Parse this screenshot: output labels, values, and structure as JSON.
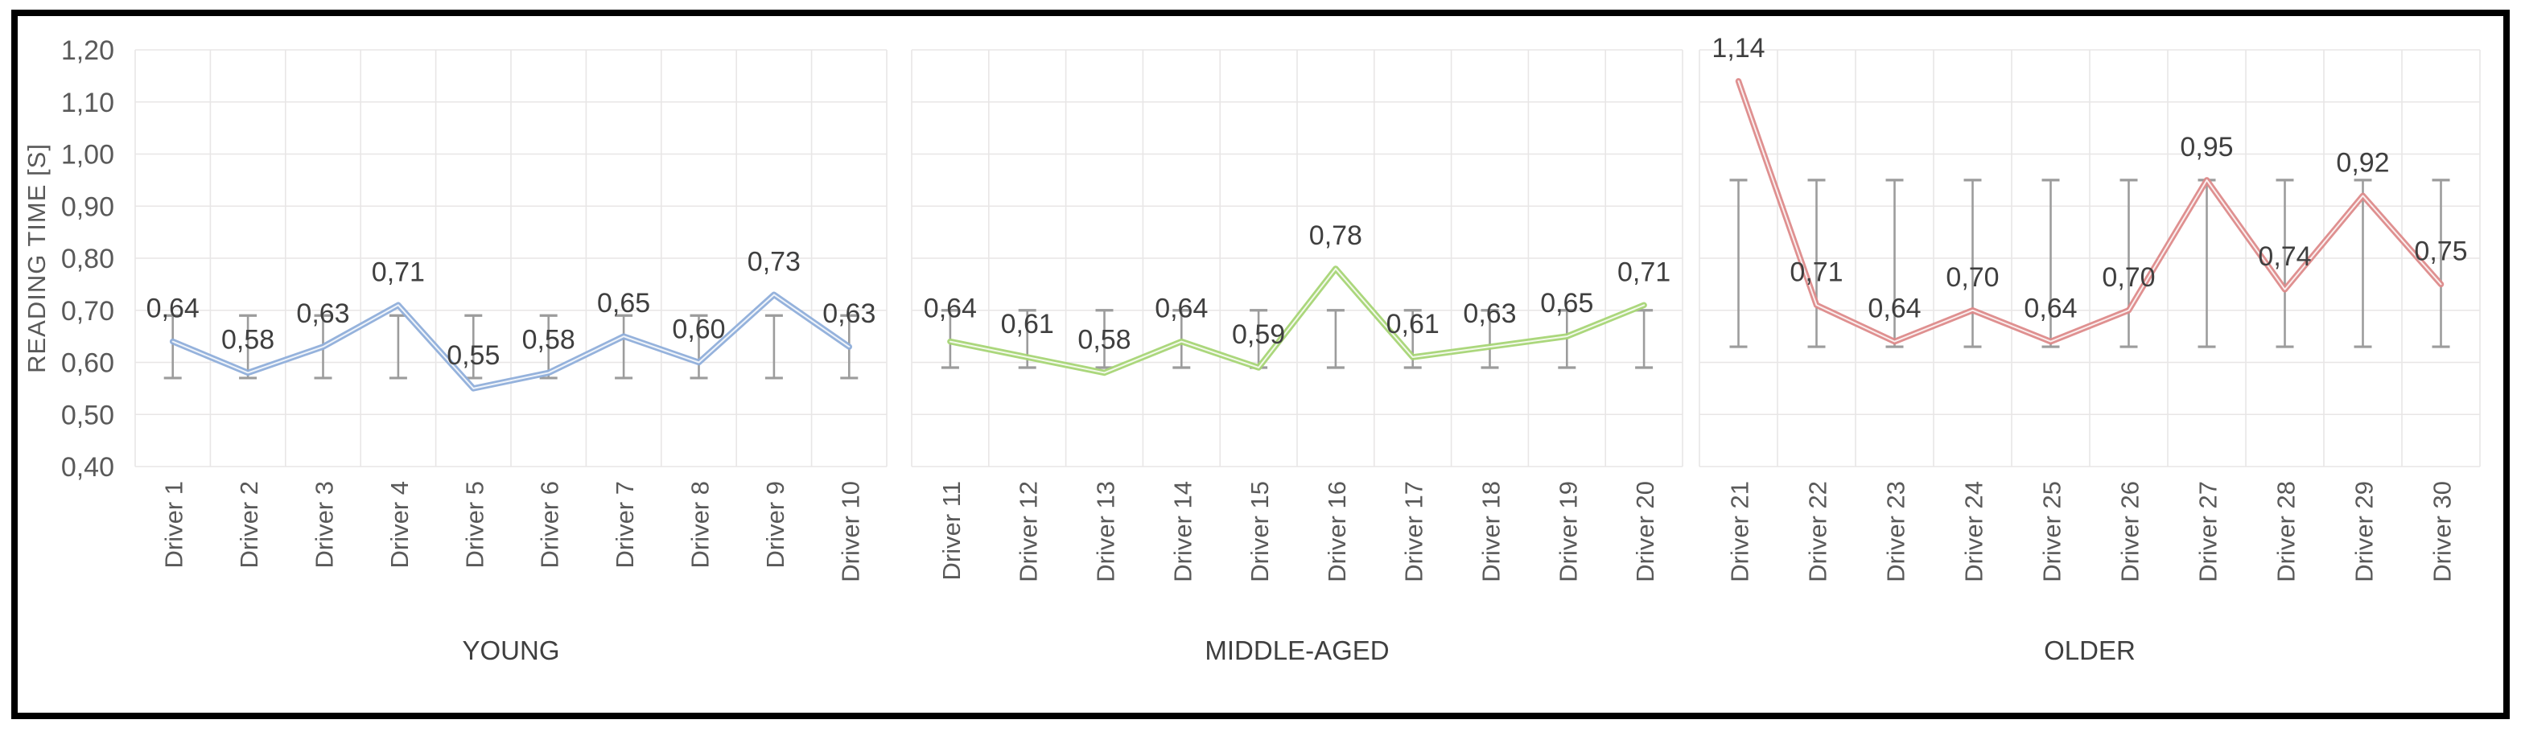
{
  "figure": {
    "description": "Reading time per driver, three age-group panels with error bars"
  },
  "y_axis": {
    "title": "READING TIME [S]",
    "min": 0.4,
    "max": 1.2,
    "step": 0.1,
    "tick_labels": [
      "1,20",
      "1,10",
      "1,00",
      "0,90",
      "0,80",
      "0,70",
      "0,60",
      "0,50",
      "0,40"
    ]
  },
  "chart_data": [
    {
      "type": "line",
      "group_label": "YOUNG",
      "categories": [
        "Driver 1",
        "Driver 2",
        "Driver 3",
        "Driver 4",
        "Driver 5",
        "Driver 6",
        "Driver 7",
        "Driver 8",
        "Driver 9",
        "Driver 10"
      ],
      "values": [
        0.64,
        0.58,
        0.63,
        0.71,
        0.55,
        0.58,
        0.65,
        0.6,
        0.73,
        0.63
      ],
      "value_labels": [
        "0,64",
        "0,58",
        "0,63",
        "0,71",
        "0,55",
        "0,58",
        "0,65",
        "0,60",
        "0,73",
        "0,63"
      ],
      "error_bar_low": 0.57,
      "error_bar_high": 0.69,
      "line_color": "#8FAEDA"
    },
    {
      "type": "line",
      "group_label": "MIDDLE-AGED",
      "categories": [
        "Driver 11",
        "Driver 12",
        "Driver 13",
        "Driver 14",
        "Driver 15",
        "Driver 16",
        "Driver 17",
        "Driver 18",
        "Driver 19",
        "Driver 20"
      ],
      "values": [
        0.64,
        0.61,
        0.58,
        0.64,
        0.59,
        0.78,
        0.61,
        0.63,
        0.65,
        0.71
      ],
      "value_labels": [
        "0,64",
        "0,61",
        "0,58",
        "0,64",
        "0,59",
        "0,78",
        "0,61",
        "0,63",
        "0,65",
        "0,71"
      ],
      "error_bar_low": 0.59,
      "error_bar_high": 0.7,
      "line_color": "#A6D575"
    },
    {
      "type": "line",
      "group_label": "OLDER",
      "categories": [
        "Driver 21",
        "Driver 22",
        "Driver 23",
        "Driver 24",
        "Driver 25",
        "Driver 26",
        "Driver 27",
        "Driver 28",
        "Driver 29",
        "Driver 30"
      ],
      "values": [
        1.14,
        0.71,
        0.64,
        0.7,
        0.64,
        0.7,
        0.95,
        0.74,
        0.92,
        0.75
      ],
      "value_labels": [
        "1,14",
        "0,71",
        "0,64",
        "0,70",
        "0,64",
        "0,70",
        "0,95",
        "0,74",
        "0,92",
        "0,75"
      ],
      "error_bar_low": 0.63,
      "error_bar_high": 0.95,
      "line_color": "#DD8A8A"
    }
  ],
  "styles": {
    "background": "#FFFFFF",
    "frame_color": "#000000",
    "grid_color": "#E8E6E6",
    "error_bar_color": "#9C9C9C",
    "axis_text_color": "#595959",
    "label_text_color": "#3F3F3F",
    "line_core_color": "#FFFFFF"
  }
}
